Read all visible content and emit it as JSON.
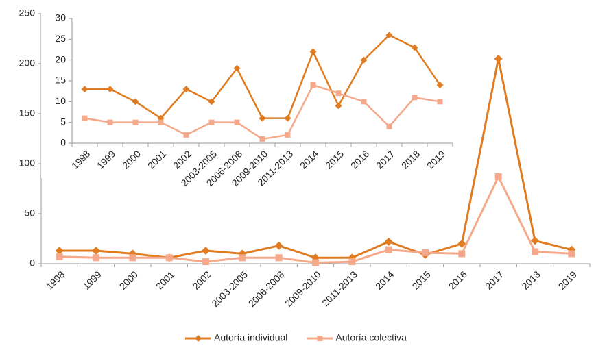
{
  "chart_data": [
    {
      "type": "line",
      "categories": [
        "1998",
        "1999",
        "2000",
        "2001",
        "2002",
        "2003-2005",
        "2006-2008",
        "2009-2010",
        "2011-2013",
        "2014",
        "2015",
        "2016",
        "2017",
        "2018",
        "2019"
      ],
      "series": [
        {
          "name": "Autoría individual",
          "color": "#e07b20",
          "marker": "diamond",
          "values": [
            13,
            13,
            10,
            6,
            13,
            10,
            18,
            6,
            6,
            22,
            9,
            20,
            205,
            23,
            14
          ]
        },
        {
          "name": "Autoría colectiva",
          "color": "#f5a98a",
          "marker": "square",
          "values": [
            7,
            6,
            6,
            6,
            2,
            6,
            6,
            1,
            2,
            14,
            11,
            10,
            87,
            12,
            10
          ]
        }
      ],
      "ylim": [
        0,
        250
      ],
      "yticks": [
        0,
        50,
        100,
        150,
        200,
        250
      ],
      "legend": "bottom"
    },
    {
      "type": "line",
      "categories": [
        "1998",
        "1999",
        "2000",
        "2001",
        "2002",
        "2003-2005",
        "2006-2008",
        "2009-2010",
        "2011-2013",
        "2014",
        "2015",
        "2016",
        "2017",
        "2018",
        "2019"
      ],
      "series": [
        {
          "color": "#e07b20",
          "marker": "diamond",
          "values": [
            13,
            13,
            10,
            6,
            13,
            10,
            18,
            6,
            6,
            22,
            9,
            20,
            26,
            23,
            14
          ]
        },
        {
          "color": "#f5a98a",
          "marker": "square",
          "values": [
            6,
            5,
            5,
            5,
            2,
            5,
            5,
            1,
            2,
            14,
            12,
            10,
            4,
            11,
            10
          ]
        }
      ],
      "ylim": [
        0,
        30
      ],
      "yticks": [
        0,
        5,
        10,
        15,
        20,
        25,
        30
      ]
    }
  ]
}
